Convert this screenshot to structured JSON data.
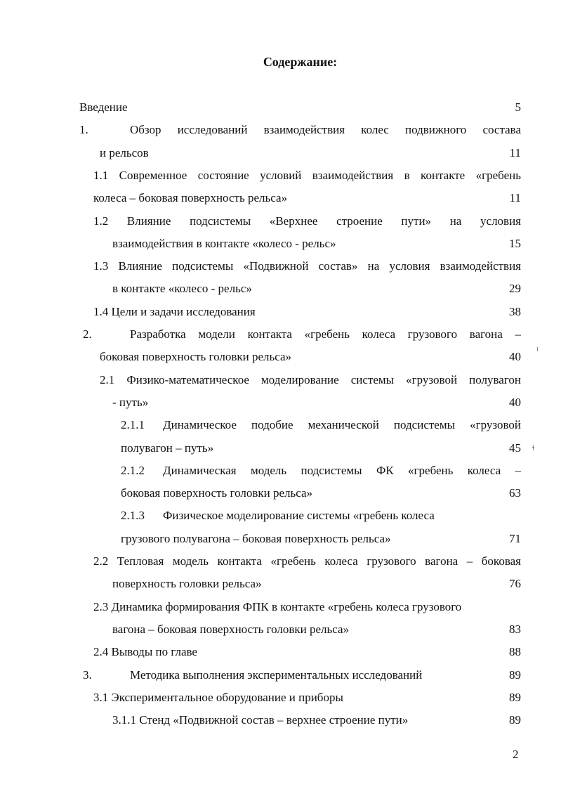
{
  "title": "Содержание:",
  "page_number": "2",
  "lines": [
    {
      "num": "",
      "text": "Введение",
      "page": "5"
    },
    {
      "num": "1.",
      "text": "Обзор исследований взаимодействия колес подвижного состава",
      "page": ""
    },
    {
      "num": "",
      "text": "и рельсов",
      "page": "11"
    },
    {
      "num": "",
      "text": "1.1  Современное состояние условий взаимодействия в контакте «гребень",
      "page": ""
    },
    {
      "num": "",
      "text": "колеса – боковая поверхность рельса»",
      "page": "11"
    },
    {
      "num": "",
      "text": "1.2 Влияние подсистемы «Верхнее строение пути» на условия",
      "page": ""
    },
    {
      "num": "",
      "text": "взаимодействия в контакте «колесо - рельс»",
      "page": "15"
    },
    {
      "num": "",
      "text": "1.3  Влияние подсистемы «Подвижной состав» на условия взаимодействия",
      "page": ""
    },
    {
      "num": "",
      "text": "в контакте «колесо - рельс»",
      "page": "29"
    },
    {
      "num": "",
      "text": "1.4  Цели и задачи исследования",
      "page": "38"
    },
    {
      "num": "2.",
      "text": "Разработка модели контакта «гребень колеса грузового вагона –",
      "page": ""
    },
    {
      "num": "",
      "text": "боковая поверхность головки рельса»",
      "page": "40"
    },
    {
      "num": "",
      "text": "2.1 Физико-математическое моделирование системы «грузовой полувагон",
      "page": ""
    },
    {
      "num": "",
      "text": "- путь»",
      "page": "40"
    },
    {
      "num": "2.1.1",
      "text": "Динамическое подобие механической подсистемы «грузовой",
      "page": ""
    },
    {
      "num": "",
      "text": "полувагон – путь»",
      "page": "45"
    },
    {
      "num": "2.1.2",
      "text": "Динамическая модель подсистемы ФК «гребень колеса –",
      "page": ""
    },
    {
      "num": "",
      "text": "боковая поверхность головки рельса»",
      "page": "63"
    },
    {
      "num": "2.1.3",
      "text": "Физическое моделирование системы «гребень колеса",
      "page": ""
    },
    {
      "num": "",
      "text": "грузового полувагона – боковая поверхность рельса»",
      "page": "71"
    },
    {
      "num": "",
      "text": "2.2  Тепловая модель контакта «гребень колеса грузового вагона – боковая",
      "page": ""
    },
    {
      "num": "",
      "text": "поверхность головки рельса»",
      "page": "76"
    },
    {
      "num": "",
      "text": "2.3  Динамика формирования ФПК в контакте  «гребень колеса грузового",
      "page": ""
    },
    {
      "num": "",
      "text": "вагона – боковая поверхность головки рельса»",
      "page": "83"
    },
    {
      "num": "",
      "text": "2.4  Выводы по главе",
      "page": "88"
    },
    {
      "num": "3.",
      "text": "Методика выполнения экспериментальных исследований",
      "page": "89"
    },
    {
      "num": "",
      "text": "3.1  Экспериментальное оборудование и приборы",
      "page": "89"
    },
    {
      "num": "",
      "text": "3.1.1  Стенд «Подвижной состав – верхнее строение пути»",
      "page": "89"
    }
  ]
}
